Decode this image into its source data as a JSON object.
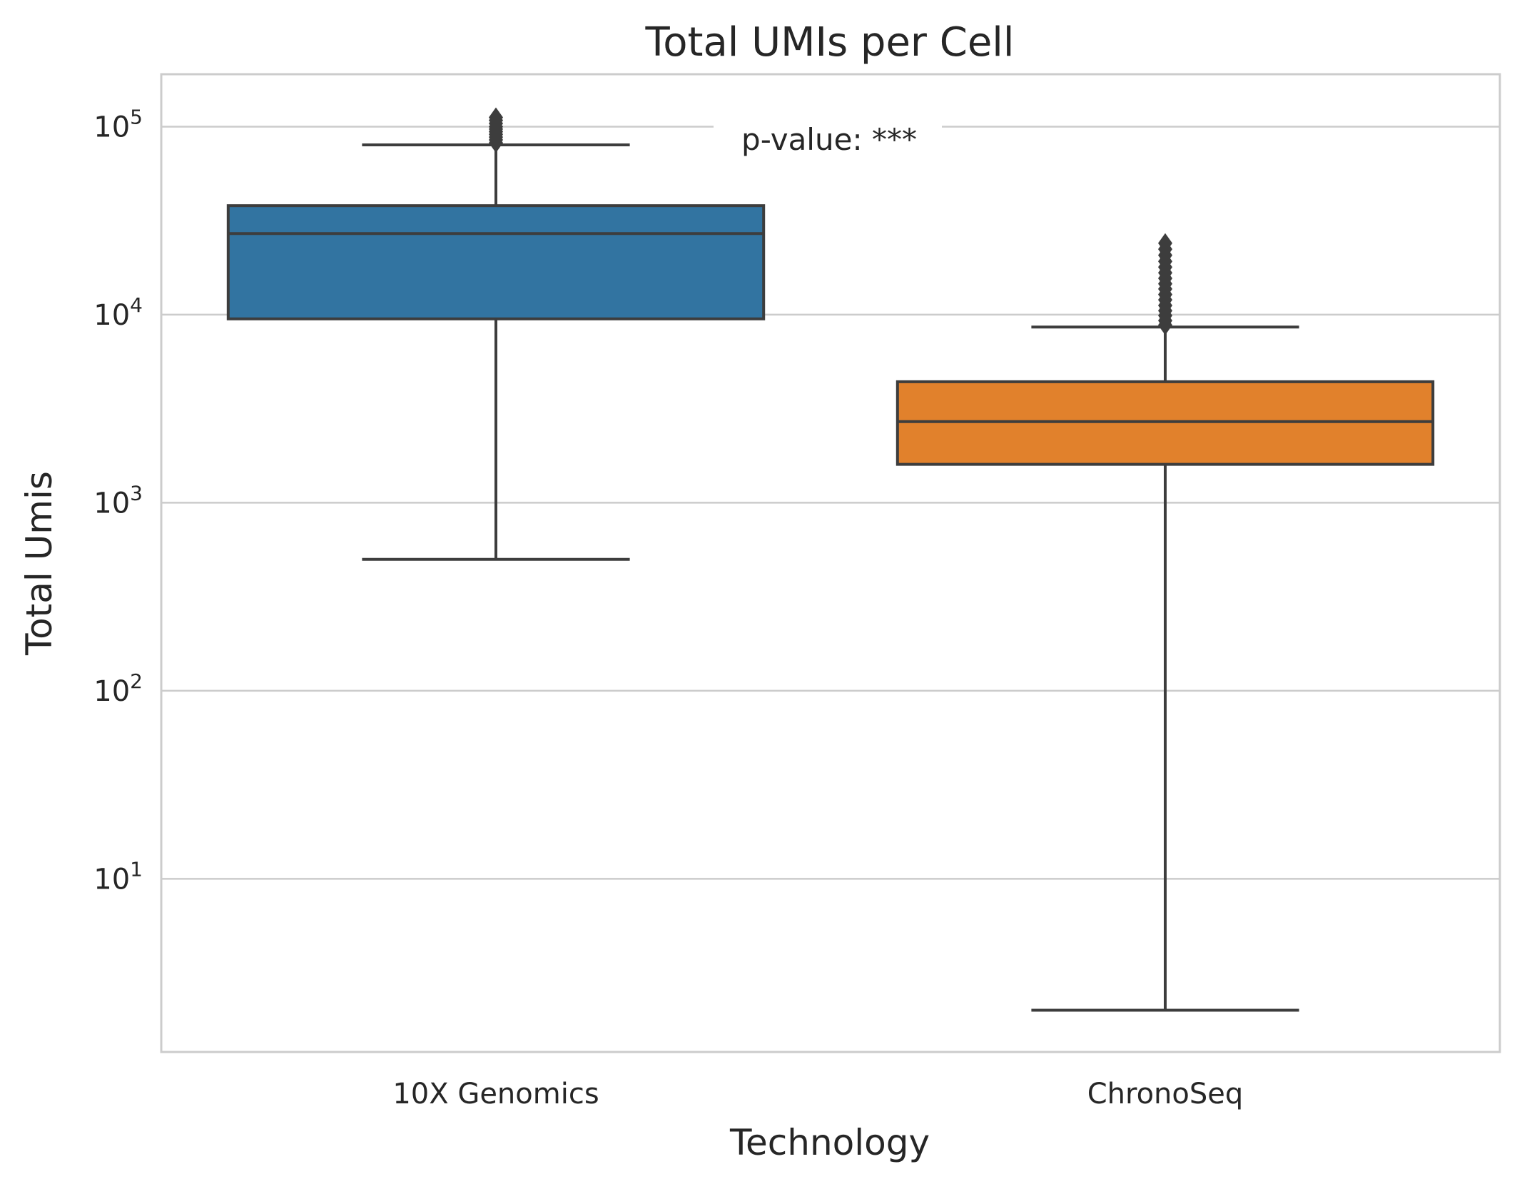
{
  "chart_data": {
    "type": "box",
    "title": "Total UMIs per Cell",
    "xlabel": "Technology",
    "ylabel": "Total Umis",
    "yscale": "log",
    "ylim": [
      1.2,
      190000
    ],
    "yticks": [
      {
        "value": 10,
        "base": "10",
        "exp": "1"
      },
      {
        "value": 100,
        "base": "10",
        "exp": "2"
      },
      {
        "value": 1000,
        "base": "10",
        "exp": "3"
      },
      {
        "value": 10000,
        "base": "10",
        "exp": "4"
      },
      {
        "value": 100000,
        "base": "10",
        "exp": "5"
      }
    ],
    "grid": true,
    "annotation": "p-value: ***",
    "categories": [
      "10X Genomics",
      "ChronoSeq"
    ],
    "boxes": [
      {
        "name": "10X Genomics",
        "color": "#3274a1",
        "whisker_low": 500,
        "q1": 9500,
        "median": 27000,
        "q3": 38000,
        "whisker_high": 80000,
        "outliers": [
          82000,
          85000,
          88000,
          91000,
          94000,
          97000,
          100000,
          104000,
          108000,
          112000
        ]
      },
      {
        "name": "ChronoSeq",
        "color": "#e1812c",
        "whisker_low": 2,
        "q1": 1600,
        "median": 2700,
        "q3": 4400,
        "whisker_high": 8600,
        "outliers": [
          8800,
          9300,
          9900,
          10500,
          11200,
          12000,
          12800,
          13700,
          14600,
          15600,
          16700,
          17900,
          19200,
          20700,
          22300,
          24000
        ]
      }
    ]
  }
}
